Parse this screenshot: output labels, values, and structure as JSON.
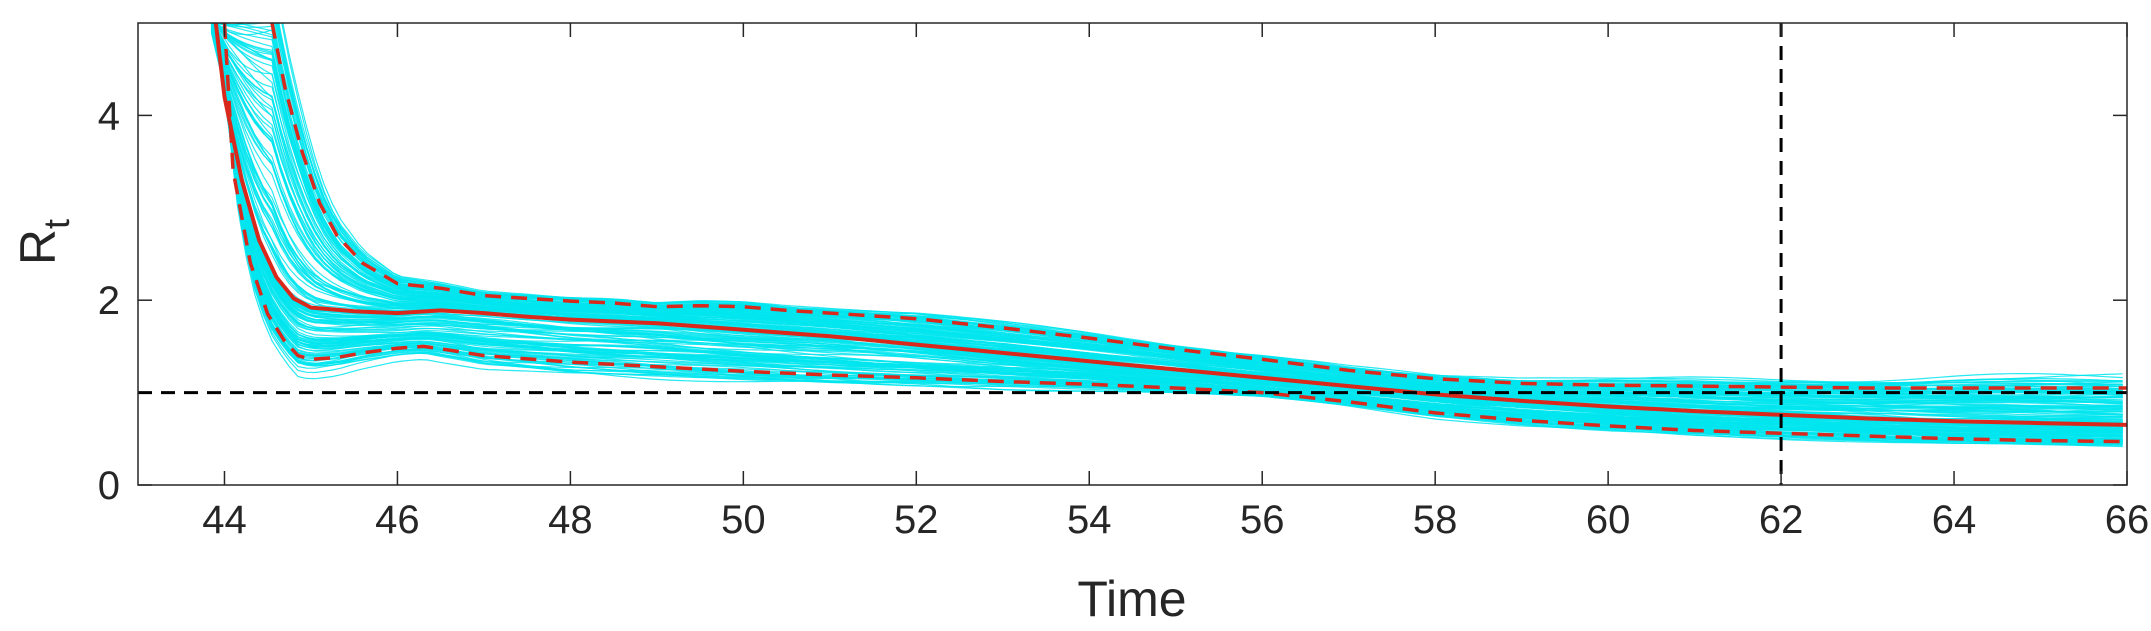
{
  "chart_data": {
    "type": "line",
    "xlabel": "Time",
    "ylabel": "R",
    "ylabel_subscript": "t",
    "xlim": [
      43,
      66
    ],
    "ylim": [
      0,
      5
    ],
    "xticks": [
      44,
      46,
      48,
      50,
      52,
      54,
      56,
      58,
      60,
      62,
      64,
      66
    ],
    "yticks": [
      0,
      2,
      4
    ],
    "grid": false,
    "reference_lines": {
      "horizontal_y": 1,
      "vertical_x": 62
    },
    "colors": {
      "ensemble": "#00e5ee",
      "median": "#d9281c",
      "reference": "#000000",
      "axes": "#262626"
    },
    "series": [
      {
        "role": "median",
        "style": "solid",
        "x": [
          43.9,
          44.0,
          44.2,
          44.4,
          44.6,
          44.8,
          45.0,
          45.5,
          46.0,
          46.5,
          47.0,
          47.5,
          48.0,
          49.0,
          50.0,
          51.0,
          52.0,
          53.0,
          54.0,
          55.0,
          56.0,
          57.0,
          58.0,
          59.0,
          60.0,
          61.0,
          62.0,
          63.0,
          64.0,
          65.0,
          66.0
        ],
        "values": [
          5.0,
          4.2,
          3.3,
          2.65,
          2.25,
          2.02,
          1.92,
          1.88,
          1.86,
          1.89,
          1.86,
          1.82,
          1.79,
          1.75,
          1.68,
          1.61,
          1.52,
          1.43,
          1.34,
          1.25,
          1.16,
          1.07,
          0.98,
          0.91,
          0.85,
          0.8,
          0.76,
          0.72,
          0.69,
          0.67,
          0.65
        ]
      },
      {
        "role": "upper-bound",
        "style": "dashed",
        "x": [
          44.55,
          44.7,
          44.9,
          45.1,
          45.3,
          45.6,
          46.0,
          46.5,
          47.0,
          47.5,
          48.0,
          48.5,
          49.0,
          49.5,
          50.0,
          50.5,
          51.0,
          52.0,
          53.0,
          54.0,
          55.0,
          56.0,
          57.0,
          58.0,
          59.0,
          60.0,
          61.0,
          62.0,
          63.0,
          64.0,
          65.0,
          66.0
        ],
        "values": [
          5.0,
          4.3,
          3.6,
          3.05,
          2.7,
          2.4,
          2.18,
          2.13,
          2.05,
          2.02,
          1.99,
          1.97,
          1.93,
          1.94,
          1.93,
          1.89,
          1.86,
          1.8,
          1.7,
          1.59,
          1.47,
          1.36,
          1.24,
          1.15,
          1.1,
          1.08,
          1.07,
          1.06,
          1.05,
          1.05,
          1.05,
          1.05
        ]
      },
      {
        "role": "lower-bound",
        "style": "dashed",
        "x": [
          44.0,
          44.1,
          44.3,
          44.5,
          44.7,
          44.85,
          45.0,
          45.3,
          45.6,
          46.0,
          46.3,
          46.6,
          47.0,
          48.0,
          49.0,
          50.0,
          51.0,
          52.0,
          53.0,
          54.0,
          55.0,
          56.0,
          57.0,
          58.0,
          59.0,
          60.0,
          61.0,
          62.0,
          63.0,
          64.0,
          65.0,
          66.0
        ],
        "values": [
          5.0,
          3.4,
          2.4,
          1.85,
          1.55,
          1.4,
          1.36,
          1.38,
          1.43,
          1.48,
          1.5,
          1.46,
          1.4,
          1.33,
          1.28,
          1.23,
          1.19,
          1.16,
          1.12,
          1.09,
          1.05,
          1.0,
          0.9,
          0.78,
          0.7,
          0.64,
          0.59,
          0.56,
          0.53,
          0.5,
          0.48,
          0.47
        ]
      }
    ]
  }
}
